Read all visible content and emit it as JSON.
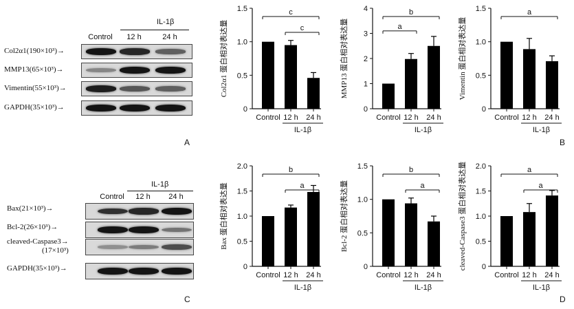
{
  "panel_letters": {
    "a": "A",
    "b": "B",
    "c": "C",
    "d": "D"
  },
  "blot_top": {
    "lanes": [
      "Control",
      "12 h",
      "24 h"
    ],
    "group": "IL-1β",
    "rows": [
      {
        "label": "Col2α1(190×10³)→",
        "intensity": [
          0.95,
          0.85,
          0.55
        ]
      },
      {
        "label": "MMP13(65×10³)→",
        "intensity": [
          0.35,
          0.95,
          0.95
        ]
      },
      {
        "label": "Vimentin(55×10³)→",
        "intensity": [
          0.9,
          0.6,
          0.55
        ]
      },
      {
        "label": "GAPDH(35×10³)→",
        "intensity": [
          0.95,
          0.95,
          0.95
        ]
      }
    ]
  },
  "blot_bottom": {
    "lanes": [
      "Control",
      "12 h",
      "24 h"
    ],
    "group": "IL-1β",
    "rows": [
      {
        "label": "Bax(21×10³)→",
        "intensity": [
          0.8,
          0.85,
          0.95
        ]
      },
      {
        "label": "Bcl-2(26×10³)→",
        "intensity": [
          0.95,
          0.95,
          0.45
        ]
      },
      {
        "label": "cleaved-Caspase3→\n(17×10³)",
        "intensity": [
          0.3,
          0.4,
          0.65
        ]
      },
      {
        "label": "GAPDH(35×10³)→",
        "intensity": [
          0.95,
          0.95,
          0.95
        ]
      }
    ]
  },
  "chart_data": [
    {
      "type": "bar",
      "categories": [
        "Control",
        "12 h",
        "24 h"
      ],
      "group": "IL-1β",
      "values": [
        1.0,
        0.95,
        0.46
      ],
      "errors": [
        0.0,
        0.07,
        0.08
      ],
      "ylabel": "Col2α1 蛋白相对表达量",
      "ylim": [
        0,
        1.5
      ],
      "yticks": [
        "0",
        "0.5",
        "1.0",
        "1.5"
      ],
      "ytick_values": [
        0,
        0.5,
        1.0,
        1.5
      ],
      "sig": [
        {
          "from": 0,
          "to": 2,
          "label": "c"
        },
        {
          "from": 1,
          "to": 2,
          "label": "c"
        }
      ]
    },
    {
      "type": "bar",
      "categories": [
        "Control",
        "12 h",
        "24 h"
      ],
      "group": "IL-1β",
      "values": [
        1.0,
        1.98,
        2.5
      ],
      "errors": [
        0.0,
        0.22,
        0.38
      ],
      "ylabel": "MMP13 蛋白相对表达量",
      "ylim": [
        0,
        4
      ],
      "yticks": [
        "0",
        "1",
        "2",
        "3",
        "4"
      ],
      "ytick_values": [
        0,
        1,
        2,
        3,
        4
      ],
      "sig": [
        {
          "from": 0,
          "to": 2,
          "label": "b"
        },
        {
          "from": 0,
          "to": 1,
          "label": "a"
        }
      ]
    },
    {
      "type": "bar",
      "categories": [
        "Control",
        "12 h",
        "24 h"
      ],
      "group": "IL-1β",
      "values": [
        1.0,
        0.89,
        0.71
      ],
      "errors": [
        0.0,
        0.16,
        0.08
      ],
      "ylabel": "Vimentin 蛋白相对表达量",
      "ylim": [
        0,
        1.5
      ],
      "yticks": [
        "0",
        "0.5",
        "1.0",
        "1.5"
      ],
      "ytick_values": [
        0,
        0.5,
        1.0,
        1.5
      ],
      "sig": [
        {
          "from": 0,
          "to": 2,
          "label": "a"
        }
      ]
    },
    {
      "type": "bar",
      "categories": [
        "Control",
        "12 h",
        "24 h"
      ],
      "group": "IL-1β",
      "values": [
        1.0,
        1.17,
        1.48
      ],
      "errors": [
        0.0,
        0.05,
        0.13
      ],
      "ylabel": "Bax 蛋白相对表达量",
      "ylim": [
        0,
        2.0
      ],
      "yticks": [
        "0",
        "0.5",
        "1.0",
        "1.5",
        "2.0"
      ],
      "ytick_values": [
        0,
        0.5,
        1.0,
        1.5,
        2.0
      ],
      "sig": [
        {
          "from": 0,
          "to": 2,
          "label": "b"
        },
        {
          "from": 1,
          "to": 2,
          "label": "a"
        }
      ]
    },
    {
      "type": "bar",
      "categories": [
        "Control",
        "12 h",
        "24 h"
      ],
      "group": "IL-1β",
      "values": [
        1.0,
        0.94,
        0.67
      ],
      "errors": [
        0.0,
        0.08,
        0.08
      ],
      "ylabel": "Bcl-2 蛋白相对表达量",
      "ylim": [
        0,
        1.5
      ],
      "yticks": [
        "0",
        "0.5",
        "1.0",
        "1.5"
      ],
      "ytick_values": [
        0,
        0.5,
        1.0,
        1.5
      ],
      "sig": [
        {
          "from": 0,
          "to": 2,
          "label": "b"
        },
        {
          "from": 1,
          "to": 2,
          "label": "a"
        }
      ]
    },
    {
      "type": "bar",
      "categories": [
        "Control",
        "12 h",
        "24 h"
      ],
      "group": "IL-1β",
      "values": [
        1.0,
        1.08,
        1.41
      ],
      "errors": [
        0.0,
        0.17,
        0.1
      ],
      "ylabel": "cleaved-Caspase3 蛋白相对表达量",
      "ylim": [
        0,
        2.0
      ],
      "yticks": [
        "0",
        "0.5",
        "1.0",
        "1.5",
        "2.0"
      ],
      "ytick_values": [
        0,
        0.5,
        1.0,
        1.5,
        2.0
      ],
      "sig": [
        {
          "from": 0,
          "to": 2,
          "label": "a"
        },
        {
          "from": 1,
          "to": 2,
          "label": "a"
        }
      ]
    }
  ]
}
